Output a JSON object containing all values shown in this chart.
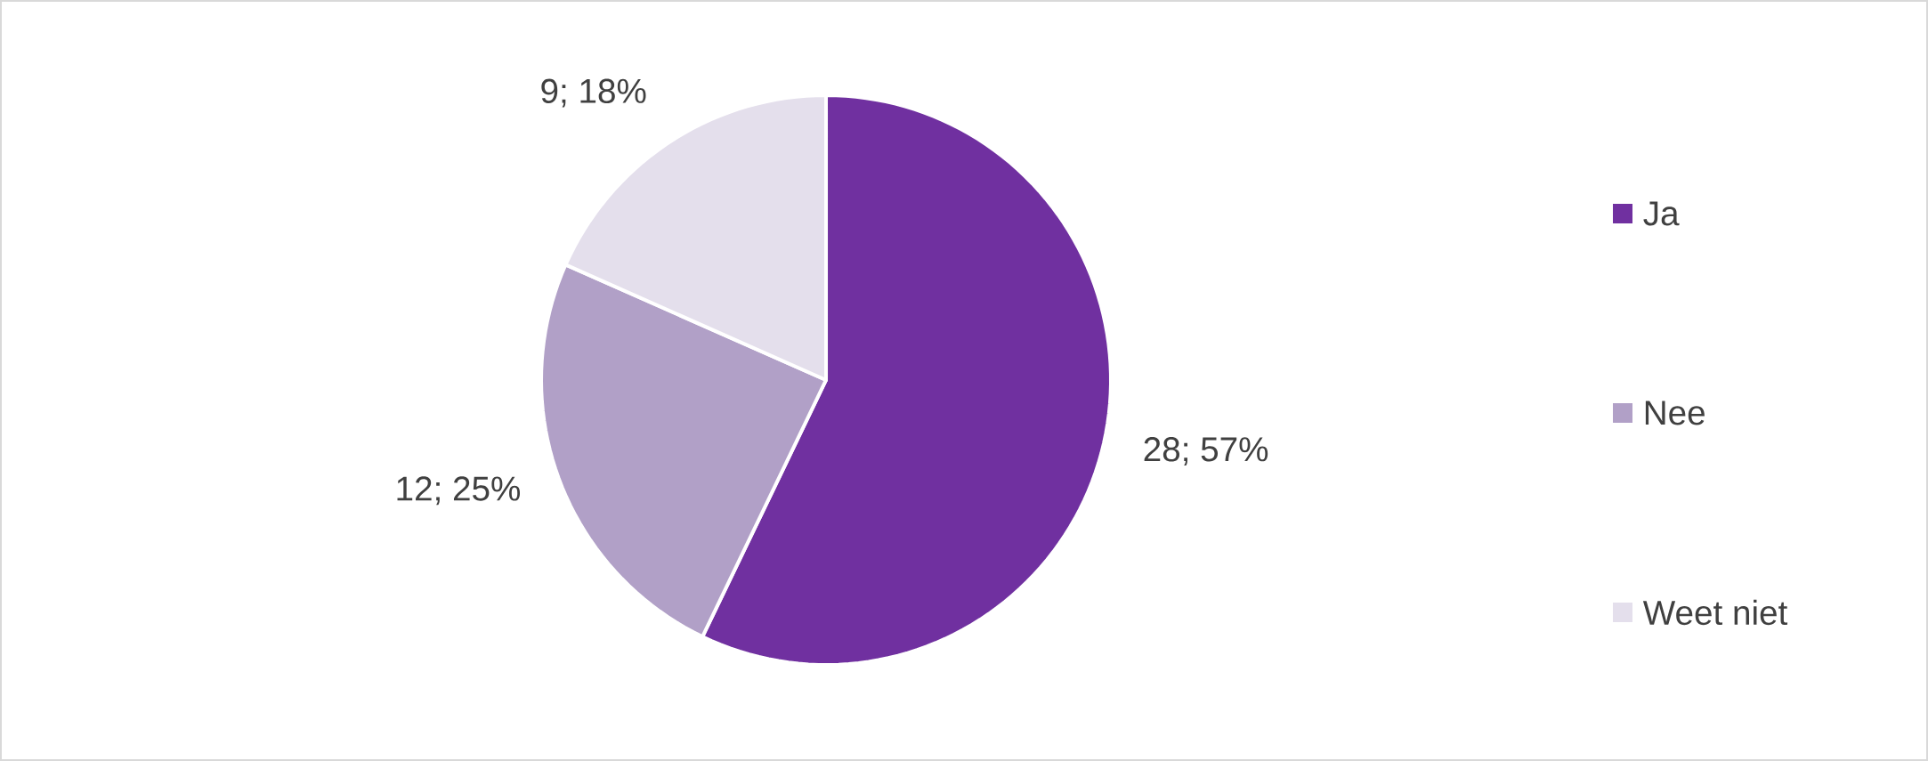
{
  "chart_data": {
    "type": "pie",
    "categories": [
      "Ja",
      "Nee",
      "Weet niet"
    ],
    "values": [
      28,
      12,
      9
    ],
    "colors": [
      "#7030a0",
      "#b1a0c7",
      "#e4dfec"
    ],
    "value_labels": [
      "28; 57%",
      "12; 25%",
      "9; 18%"
    ],
    "legend": "right"
  }
}
